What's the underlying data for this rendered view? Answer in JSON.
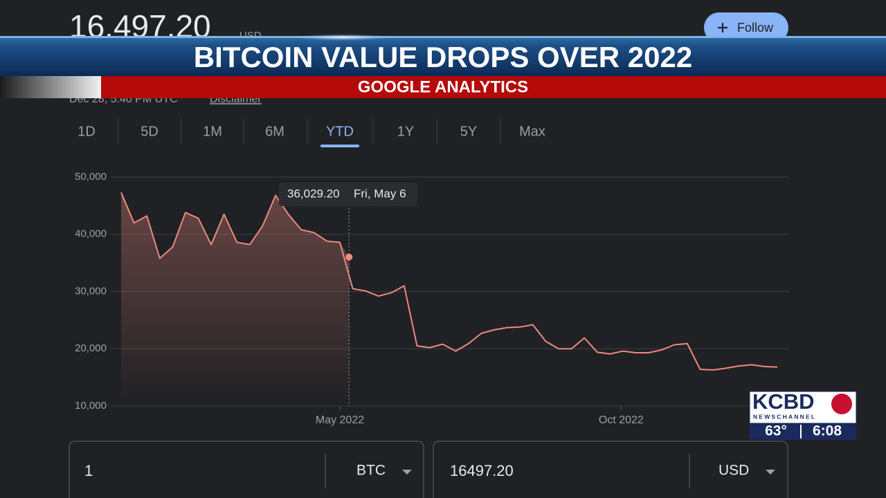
{
  "header": {
    "price": "16,497.20",
    "currency": "USD",
    "timestamp": "Dec 28, 5:40 PM UTC",
    "disclaimer": "Disclaimer",
    "follow": "Follow"
  },
  "tabs": [
    "1D",
    "5D",
    "1M",
    "6M",
    "YTD",
    "1Y",
    "5Y",
    "Max"
  ],
  "selected_tab": 4,
  "converter": {
    "amount": "1",
    "from": "BTC",
    "result": "16497.20",
    "to": "USD"
  },
  "news": {
    "headline": "BITCOIN VALUE DROPS OVER 2022",
    "subhead": "GOOGLE ANALYTICS",
    "station": "KCBD",
    "network": "NEWSCHANNEL",
    "temperature": "63°",
    "time": "6:08"
  },
  "chart_data": {
    "type": "line",
    "color": "#ee8a80",
    "values": [
      47300,
      42000,
      43200,
      35800,
      37800,
      43800,
      42800,
      38200,
      43500,
      38600,
      38200,
      41500,
      46800,
      43500,
      40800,
      40300,
      38800,
      38600,
      30500,
      30100,
      29200,
      29800,
      31000,
      20500,
      20200,
      20800,
      19600,
      20900,
      22700,
      23300,
      23700,
      23800,
      24200,
      21300,
      20000,
      20000,
      21900,
      19400,
      19100,
      19600,
      19300,
      19300,
      19800,
      20700,
      20900,
      16400,
      16300,
      16600,
      17000,
      17200,
      16900,
      16800
    ],
    "xlim": [
      0,
      51.43
    ],
    "xticks": [
      {
        "value": 17,
        "label": "May 2022"
      },
      {
        "value": 38.86,
        "label": "Oct 2022"
      }
    ],
    "ylim": [
      10000,
      50000
    ],
    "yticks": [
      {
        "value": 10000,
        "label": "10,000"
      },
      {
        "value": 20000,
        "label": "20,000"
      },
      {
        "value": 30000,
        "label": "30,000"
      },
      {
        "value": 40000,
        "label": "40,000"
      },
      {
        "value": 50000,
        "label": "50,000"
      }
    ],
    "grid": true,
    "tooltip": {
      "x": 17.71,
      "value": 36029.2,
      "label": "36,029.20",
      "date": "Fri, May 6"
    }
  }
}
